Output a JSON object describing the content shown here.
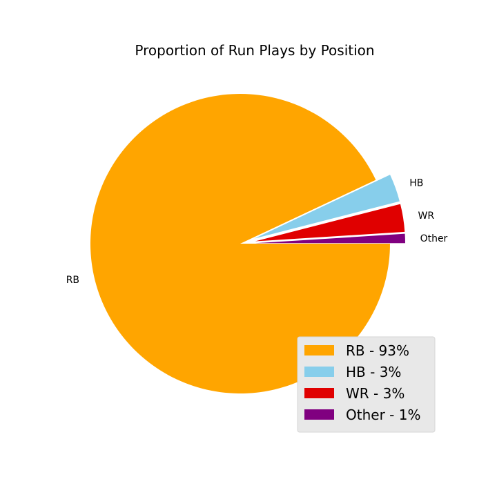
{
  "chart_data": {
    "type": "pie",
    "title": "Proportion of Run Plays by Position",
    "slices": [
      {
        "label": "RB",
        "value": 93,
        "legend": "RB - 93%",
        "color": "#ffa500",
        "explode": false
      },
      {
        "label": "HB",
        "value": 3,
        "legend": "HB - 3%",
        "color": "#87ceeb",
        "explode": true
      },
      {
        "label": "WR",
        "value": 3,
        "legend": "WR - 3%",
        "color": "#e00000",
        "explode": true
      },
      {
        "label": "Other",
        "value": 1,
        "legend": "Other - 1%",
        "color": "#800080",
        "explode": true
      }
    ],
    "start_angle_deg": 0,
    "direction": "clockwise",
    "legend_position": "lower-right"
  }
}
